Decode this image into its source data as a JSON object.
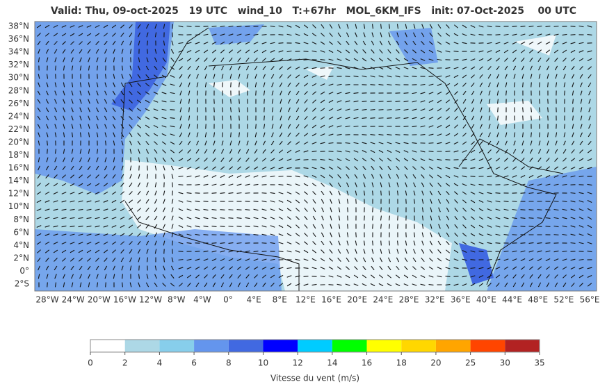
{
  "title": "Valid: Thu, 09-oct-2025   19 UTC   wind_10   T:+67hr   MOL_6KM_IFS   init: 07-Oct-2025    00 UTC",
  "lat_labels": [
    "38°N",
    "36°N",
    "34°N",
    "32°N",
    "30°N",
    "28°N",
    "26°N",
    "24°N",
    "22°N",
    "20°N",
    "18°N",
    "16°N",
    "14°N",
    "12°N",
    "10°N",
    "8°N",
    "6°N",
    "4°N",
    "2°N",
    "0°",
    "2°S"
  ],
  "lon_labels": [
    "28°W",
    "24°W",
    "20°W",
    "16°W",
    "12°W",
    "8°W",
    "4°W",
    "0°",
    "4°E",
    "8°E",
    "12°E",
    "16°E",
    "20°E",
    "24°E",
    "28°E",
    "32°E",
    "36°E",
    "40°E",
    "44°E",
    "48°E",
    "52°E",
    "56°E"
  ],
  "colorbar": {
    "ticks": [
      0,
      2,
      4,
      6,
      8,
      10,
      12,
      14,
      16,
      18,
      20,
      25,
      30,
      35
    ],
    "colors": [
      "#ffffff",
      "#add8e6",
      "#87ceeb",
      "#6495ed",
      "#4169e1",
      "#0000ff",
      "#00ccff",
      "#00ff00",
      "#ffff00",
      "#ffd700",
      "#ffa500",
      "#ff4500",
      "#b22222"
    ],
    "label": "Vitesse du vent (m/s)"
  }
}
